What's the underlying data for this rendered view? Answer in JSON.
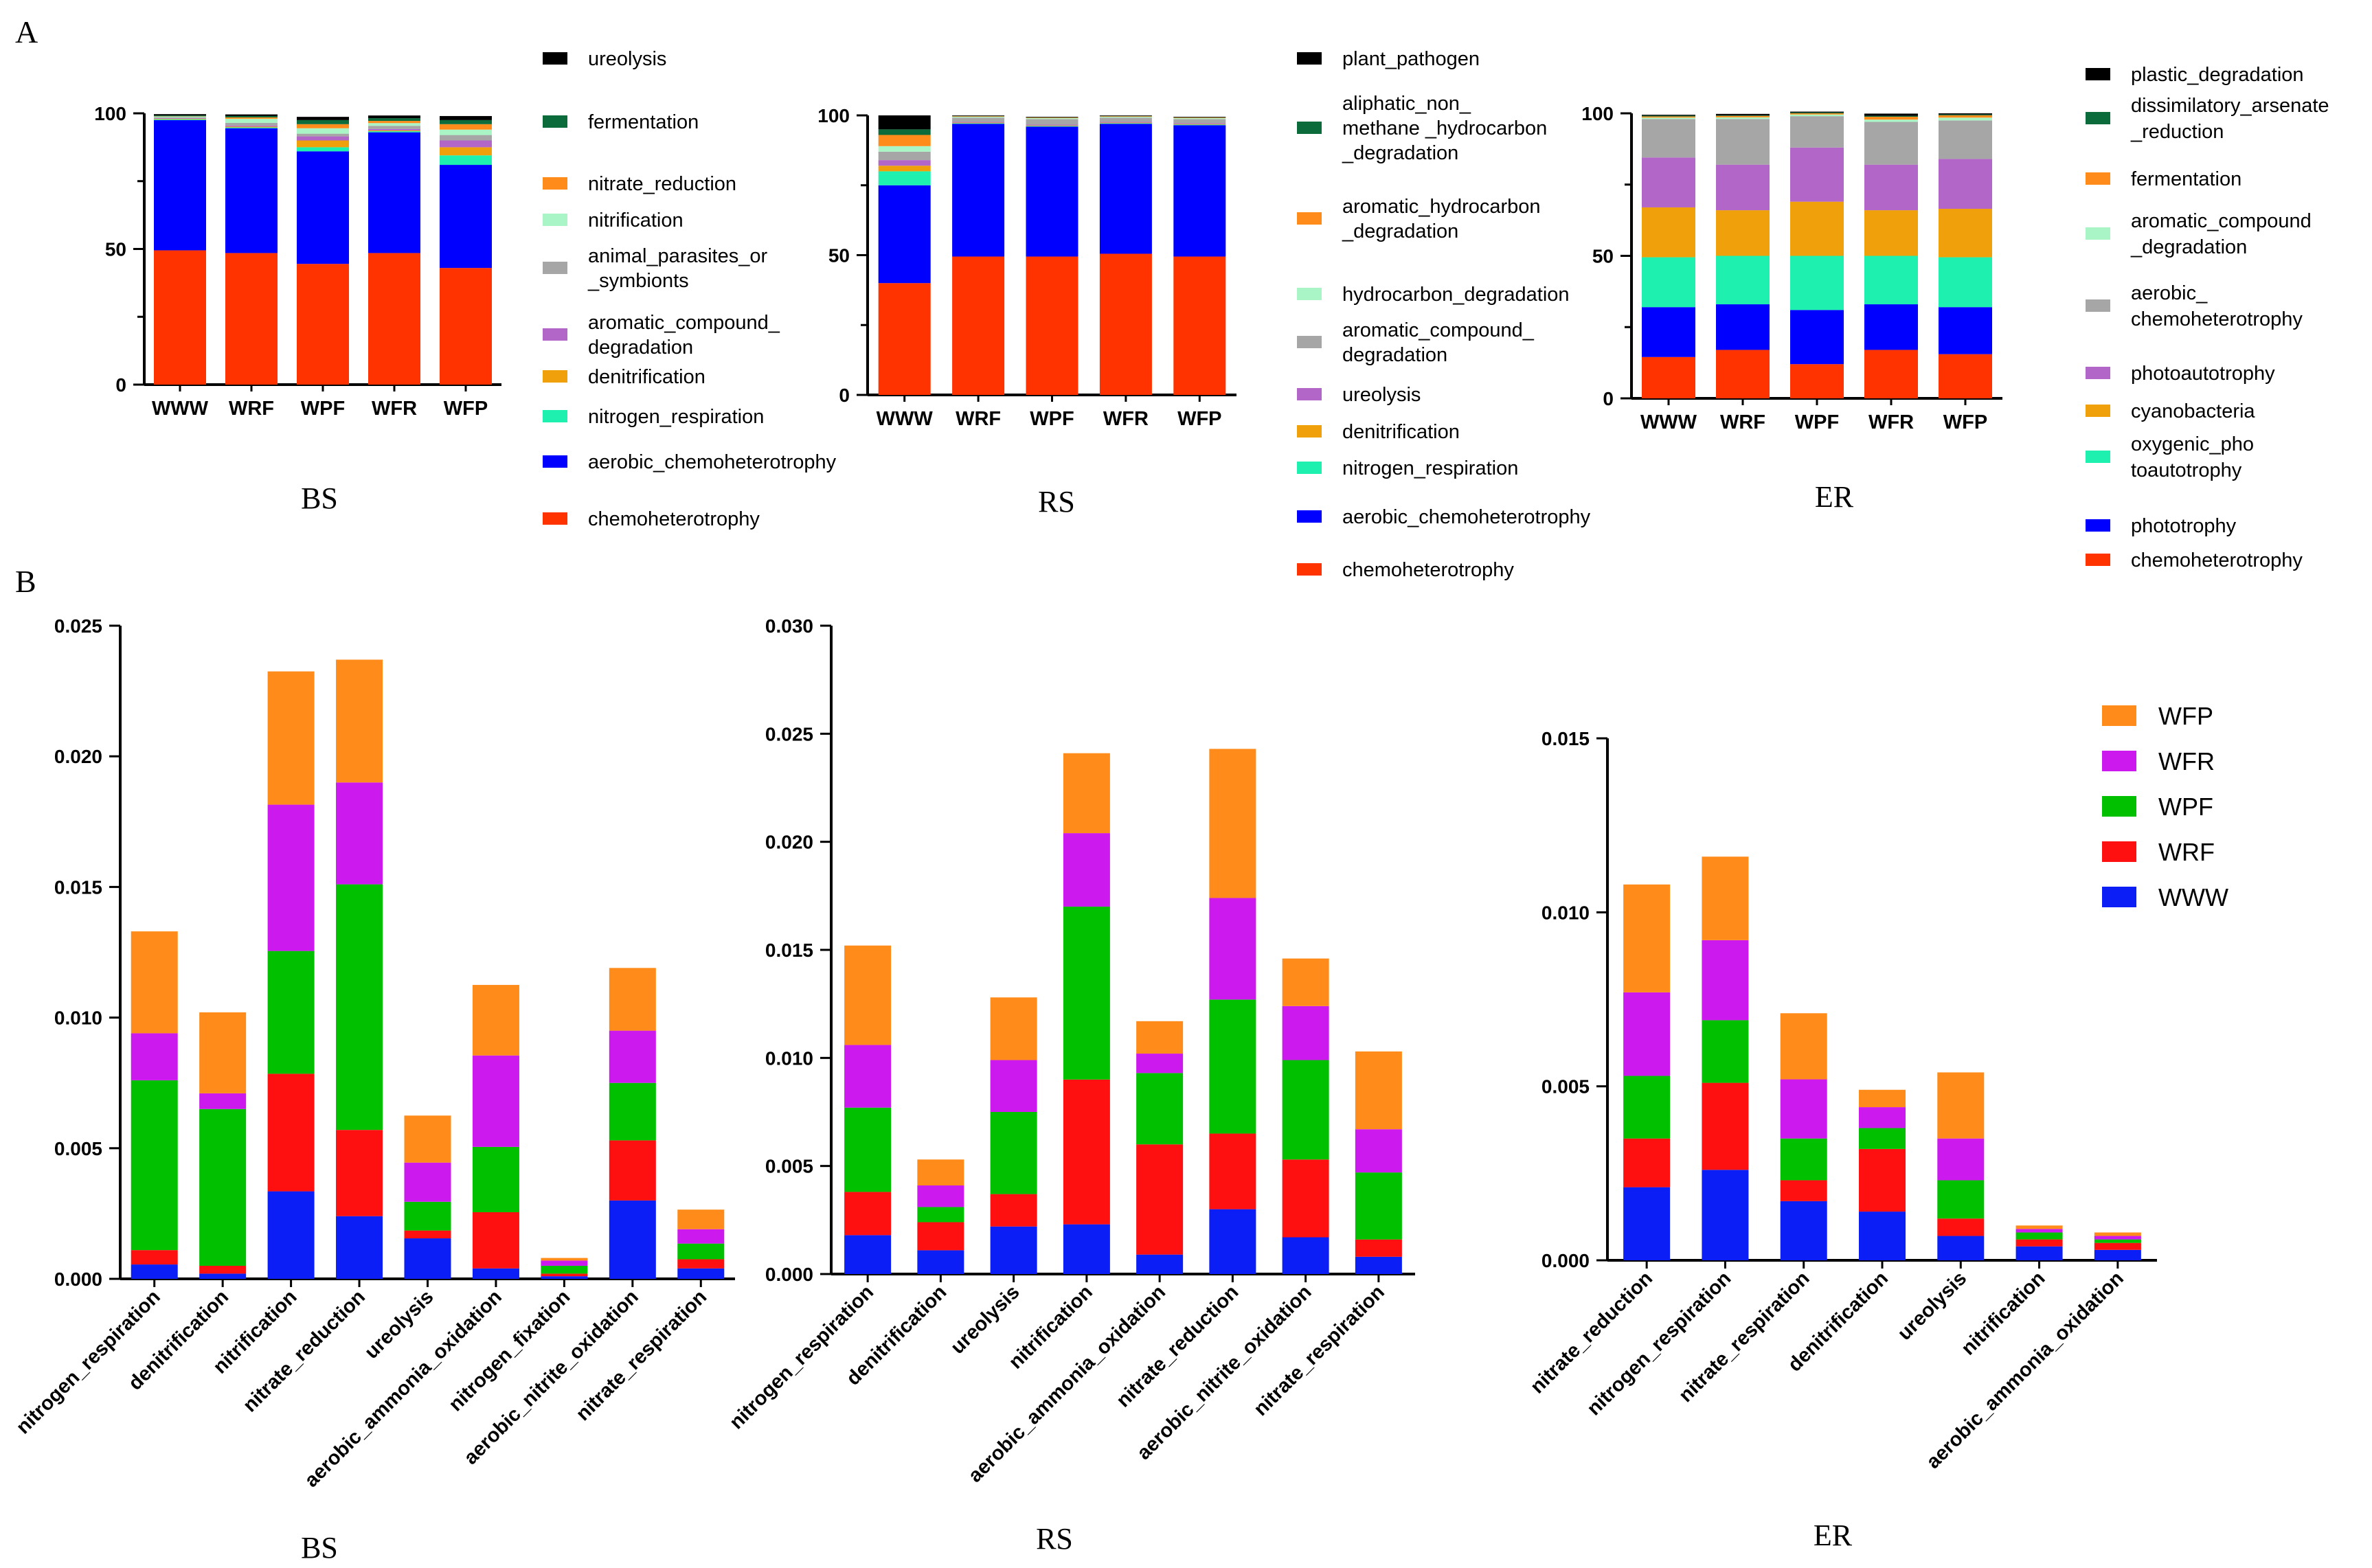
{
  "panel_labels": {
    "a": "A",
    "b": "B"
  },
  "colors": {
    "ureolysis_black": "#000000",
    "fermentation_green": "#0b6b3a",
    "orange": "#ff8c1a",
    "light_green": "#aaf5c5",
    "gray": "#a6a6a6",
    "purple": "#b266c8",
    "gold": "#f0a00a",
    "teal": "#1ef0b0",
    "blue": "#0000ff",
    "red": "#ff3300",
    "b_WWW": "#0a1ef5",
    "b_WRF": "#ff1010",
    "b_WPF": "#00c000",
    "b_WFR": "#cc1aee",
    "b_WFP": "#ff8c1a"
  },
  "chart_data": [
    {
      "id": "A-BS",
      "type": "bar",
      "stacked": true,
      "caption": "BS",
      "categories": [
        "WWW",
        "WRF",
        "WPF",
        "WFR",
        "WFP"
      ],
      "ylim": [
        0,
        100
      ],
      "yticks": [
        "0",
        "50",
        "100"
      ],
      "series": [
        {
          "name": "chemoheterotrophy",
          "color": "#ff3300",
          "values": [
            49.5,
            48.5,
            44.5,
            48.5,
            43
          ]
        },
        {
          "name": "aerobic_chemoheterotrophy",
          "color": "#0000ff",
          "values": [
            48,
            46,
            41.5,
            44.5,
            38
          ]
        },
        {
          "name": "nitrogen_respiration",
          "color": "#1ef0b0",
          "values": [
            0.3,
            0.3,
            1.5,
            0.4,
            3.5
          ]
        },
        {
          "name": "denitrification",
          "color": "#f0a00a",
          "values": [
            0.2,
            0.3,
            2.5,
            0.3,
            3
          ]
        },
        {
          "name": "aromatic_compound_\ndegradation",
          "color": "#b266c8",
          "values": [
            0.2,
            0.4,
            1.5,
            0.5,
            2.5
          ]
        },
        {
          "name": "animal_parasites_or\n_symbionts",
          "color": "#a6a6a6",
          "values": [
            0.3,
            1,
            1,
            1.2,
            2
          ]
        },
        {
          "name": "nitrification",
          "color": "#aaf5c5",
          "values": [
            0.3,
            1.5,
            2,
            1,
            2
          ]
        },
        {
          "name": "nitrate_reduction",
          "color": "#ff8c1a",
          "values": [
            0.1,
            0.5,
            1.5,
            0.8,
            2
          ]
        },
        {
          "name": "fermentation",
          "color": "#0b6b3a",
          "values": [
            0.3,
            0.5,
            1.5,
            1,
            1.5
          ]
        },
        {
          "name": "ureolysis",
          "color": "#000000",
          "values": [
            0.5,
            0.6,
            1.2,
            1,
            1.5
          ]
        }
      ]
    },
    {
      "id": "A-RS",
      "type": "bar",
      "stacked": true,
      "caption": "RS",
      "categories": [
        "WWW",
        "WRF",
        "WPF",
        "WFR",
        "WFP"
      ],
      "ylim": [
        0,
        100
      ],
      "yticks": [
        "0",
        "50",
        "100"
      ],
      "series": [
        {
          "name": "chemoheterotrophy",
          "color": "#ff3300",
          "values": [
            40,
            49.5,
            49.5,
            50.5,
            49.5
          ]
        },
        {
          "name": "aerobic_chemoheterotrophy",
          "color": "#0000ff",
          "values": [
            35,
            47.5,
            46.5,
            46.5,
            47
          ]
        },
        {
          "name": "nitrogen_respiration",
          "color": "#1ef0b0",
          "values": [
            5,
            0.2,
            0.2,
            0.2,
            0.2
          ]
        },
        {
          "name": "denitrification",
          "color": "#f0a00a",
          "values": [
            2,
            0.2,
            0.2,
            0.2,
            0.2
          ]
        },
        {
          "name": "ureolysis",
          "color": "#b266c8",
          "values": [
            2,
            0.3,
            0.3,
            0.3,
            0.3
          ]
        },
        {
          "name": "aromatic_compound_\ndegradation",
          "color": "#a6a6a6",
          "values": [
            3,
            1.5,
            2,
            1.5,
            1.5
          ]
        },
        {
          "name": "hydrocarbon_degradation",
          "color": "#aaf5c5",
          "values": [
            2,
            0.3,
            0.3,
            0.3,
            0.3
          ]
        },
        {
          "name": "aromatic_hydrocarbon\n_degradation",
          "color": "#ff8c1a",
          "values": [
            4,
            0.2,
            0.2,
            0.2,
            0.2
          ]
        },
        {
          "name": "aliphatic_non_\nmethane _hydrocarbon\n_degradation",
          "color": "#0b6b3a",
          "values": [
            2,
            0.1,
            0.1,
            0.1,
            0.1
          ]
        },
        {
          "name": "plant_pathogen",
          "color": "#000000",
          "values": [
            5,
            0.2,
            0.2,
            0.2,
            0.2
          ]
        }
      ]
    },
    {
      "id": "A-ER",
      "type": "bar",
      "stacked": true,
      "caption": "ER",
      "categories": [
        "WWW",
        "WRF",
        "WPF",
        "WFR",
        "WFP"
      ],
      "ylim": [
        0,
        100
      ],
      "yticks": [
        "0",
        "50",
        "100"
      ],
      "series": [
        {
          "name": "chemoheterotrophy",
          "color": "#ff3300",
          "values": [
            14.5,
            17,
            12,
            17,
            15.5
          ]
        },
        {
          "name": "phototrophy",
          "color": "#0000ff",
          "values": [
            17.5,
            16,
            19,
            16,
            16.5
          ]
        },
        {
          "name": "oxygenic_pho\ntoautotrophy",
          "color": "#1ef0b0",
          "values": [
            17.5,
            17,
            19,
            17,
            17.5
          ]
        },
        {
          "name": "cyanobacteria",
          "color": "#f0a00a",
          "values": [
            17.5,
            16,
            19,
            16,
            17
          ]
        },
        {
          "name": "photoautotrophy",
          "color": "#b266c8",
          "values": [
            17.5,
            16,
            19,
            16,
            17.5
          ]
        },
        {
          "name": "aerobic_\nchemoheterotrophy",
          "color": "#a6a6a6",
          "values": [
            13.5,
            16,
            11,
            15,
            13.5
          ]
        },
        {
          "name": "aromatic_compound\n_degradation",
          "color": "#aaf5c5",
          "values": [
            0.5,
            0.6,
            0.6,
            0.8,
            1
          ]
        },
        {
          "name": "fermentation",
          "color": "#ff8c1a",
          "values": [
            0.4,
            0.5,
            0.4,
            1,
            0.8
          ]
        },
        {
          "name": "dissimilatory_arsenate\n_reduction",
          "color": "#0b6b3a",
          "values": [
            0.3,
            0.2,
            0.3,
            0.3,
            0.3
          ]
        },
        {
          "name": "plastic_degradation",
          "color": "#000000",
          "values": [
            0.3,
            0.5,
            0.3,
            0.8,
            0.4
          ]
        }
      ]
    },
    {
      "id": "B-BS",
      "type": "bar",
      "stacked": true,
      "caption": "BS",
      "categories": [
        "nitrogen_respiration",
        "denitrification",
        "nitrification",
        "nitrate_reduction",
        "ureolysis",
        "aerobic_ammonia_oxidation",
        "nitrogen_fixation",
        "aerobic_nitrite_oxidation",
        "nitrate_respiration"
      ],
      "ylim": [
        0,
        0.025
      ],
      "yticks": [
        "0.000",
        "0.005",
        "0.010",
        "0.015",
        "0.020",
        "0.025"
      ],
      "series": [
        {
          "name": "WWW",
          "color": "#0a1ef5",
          "values": [
            0.00055,
            0.0002,
            0.00335,
            0.0024,
            0.00155,
            0.0004,
            0.0001,
            0.003,
            0.0004
          ]
        },
        {
          "name": "WRF",
          "color": "#ff1010",
          "values": [
            0.00055,
            0.0003,
            0.0045,
            0.0033,
            0.0003,
            0.00215,
            0.0001,
            0.0023,
            0.00035
          ]
        },
        {
          "name": "WPF",
          "color": "#00c000",
          "values": [
            0.0065,
            0.006,
            0.0047,
            0.0094,
            0.0011,
            0.0025,
            0.0003,
            0.0022,
            0.0006
          ]
        },
        {
          "name": "WFR",
          "color": "#cc1aee",
          "values": [
            0.0018,
            0.0006,
            0.0056,
            0.0039,
            0.0015,
            0.0035,
            0.0002,
            0.002,
            0.00055
          ]
        },
        {
          "name": "WFP",
          "color": "#ff8c1a",
          "values": [
            0.0039,
            0.0031,
            0.0051,
            0.0047,
            0.0018,
            0.0027,
            0.0001,
            0.0024,
            0.00075
          ]
        }
      ]
    },
    {
      "id": "B-RS",
      "type": "bar",
      "stacked": true,
      "caption": "RS",
      "categories": [
        "nitrogen_respiration",
        "denitrification",
        "ureolysis",
        "nitrification",
        "aerobic_ammonia_oxidation",
        "nitrate_reduction",
        "aerobic_nitrite_oxidation",
        "nitrate_respiration"
      ],
      "ylim": [
        0,
        0.03
      ],
      "yticks": [
        "0.000",
        "0.005",
        "0.010",
        "0.015",
        "0.020",
        "0.025",
        "0.030"
      ],
      "series": [
        {
          "name": "WWW",
          "color": "#0a1ef5",
          "values": [
            0.0018,
            0.0011,
            0.0022,
            0.0023,
            0.0009,
            0.003,
            0.0017,
            0.0008
          ]
        },
        {
          "name": "WRF",
          "color": "#ff1010",
          "values": [
            0.002,
            0.0013,
            0.0015,
            0.0067,
            0.0051,
            0.0035,
            0.0036,
            0.0008
          ]
        },
        {
          "name": "WPF",
          "color": "#00c000",
          "values": [
            0.0039,
            0.0007,
            0.0038,
            0.008,
            0.0033,
            0.0062,
            0.0046,
            0.0031
          ]
        },
        {
          "name": "WFR",
          "color": "#cc1aee",
          "values": [
            0.0029,
            0.001,
            0.0024,
            0.0034,
            0.0009,
            0.0047,
            0.0025,
            0.002
          ]
        },
        {
          "name": "WFP",
          "color": "#ff8c1a",
          "values": [
            0.0046,
            0.0012,
            0.0029,
            0.0037,
            0.0015,
            0.0069,
            0.0022,
            0.0036
          ]
        }
      ]
    },
    {
      "id": "B-ER",
      "type": "bar",
      "stacked": true,
      "caption": "ER",
      "categories": [
        "nitrate_reduction",
        "nitrogen_respiration",
        "nitrate_respiration",
        "denitrification",
        "ureolysis",
        "nitrification",
        "aerobic_ammonia_oxidation"
      ],
      "ylim": [
        0,
        0.015
      ],
      "yticks": [
        "0.000",
        "0.005",
        "0.010",
        "0.015"
      ],
      "legend": [
        "WFP",
        "WFR",
        "WPF",
        "WRF",
        "WWW"
      ],
      "series": [
        {
          "name": "WWW",
          "color": "#0a1ef5",
          "values": [
            0.0021,
            0.0026,
            0.0017,
            0.0014,
            0.0007,
            0.0004,
            0.0003
          ]
        },
        {
          "name": "WRF",
          "color": "#ff1010",
          "values": [
            0.0014,
            0.0025,
            0.0006,
            0.0018,
            0.0005,
            0.0002,
            0.0002
          ]
        },
        {
          "name": "WPF",
          "color": "#00c000",
          "values": [
            0.0018,
            0.0018,
            0.0012,
            0.0006,
            0.0011,
            0.0002,
            0.0001
          ]
        },
        {
          "name": "WFR",
          "color": "#cc1aee",
          "values": [
            0.0024,
            0.0023,
            0.0017,
            0.0006,
            0.0012,
            0.0001,
            0.0001
          ]
        },
        {
          "name": "WFP",
          "color": "#ff8c1a",
          "values": [
            0.0031,
            0.0024,
            0.0019,
            0.0005,
            0.0019,
            0.0001,
            0.0001
          ]
        }
      ]
    }
  ]
}
